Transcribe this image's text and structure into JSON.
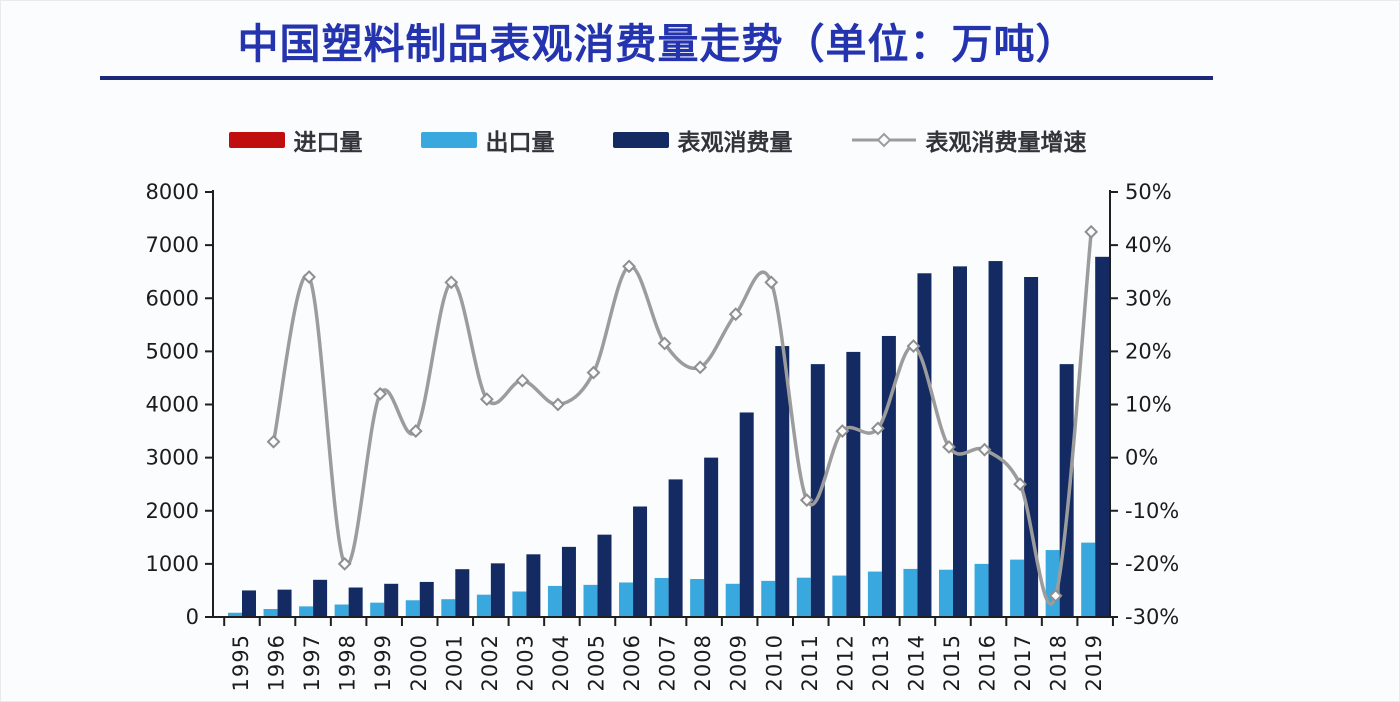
{
  "title": {
    "text": "中国塑料制品表观消费量走势（单位：万吨）"
  },
  "colors": {
    "title_blue": "#2433ae",
    "underline_navy": "#1c2878",
    "import_red": "#c00d0d",
    "export_blue": "#38a8df",
    "consumption_navy": "#132a63",
    "growth_gray": "#9c9c9c",
    "axis_black": "#1f1f1f",
    "legend_text": "#33343a",
    "background": "#fbfcfd"
  },
  "legend": {
    "items": [
      {
        "label": "进口量",
        "type": "bar",
        "color": "#c00d0d"
      },
      {
        "label": "出口量",
        "type": "bar",
        "color": "#38a8df"
      },
      {
        "label": "表观消费量",
        "type": "bar",
        "color": "#132a63"
      },
      {
        "label": "表观消费量增速",
        "type": "line",
        "color": "#9c9c9c"
      }
    ]
  },
  "chart_data": {
    "type": "bar",
    "subtype": "grouped bars with secondary-axis line (combo chart)",
    "title": "中国塑料制品表观消费量走势（单位：万吨）",
    "categories": [
      "1995",
      "1996",
      "1997",
      "1998",
      "1999",
      "2000",
      "2001",
      "2002",
      "2003",
      "2004",
      "2005",
      "2006",
      "2007",
      "2008",
      "2009",
      "2010",
      "2011",
      "2012",
      "2013",
      "2014",
      "2015",
      "2016",
      "2017",
      "2018",
      "2019"
    ],
    "series": [
      {
        "name": "进口量",
        "type": "bar",
        "axis": "left",
        "color": "#c00d0d",
        "values": null,
        "note": "appears in legend only; no visible red bars are rendered in the plot"
      },
      {
        "name": "出口量",
        "type": "bar",
        "axis": "left",
        "color": "#38a8df",
        "values": [
          80,
          150,
          200,
          235,
          270,
          315,
          335,
          420,
          480,
          585,
          605,
          650,
          735,
          715,
          625,
          680,
          740,
          780,
          855,
          905,
          890,
          1000,
          1080,
          1260,
          1400
        ]
      },
      {
        "name": "表观消费量",
        "type": "bar",
        "axis": "left",
        "color": "#132a63",
        "values": [
          500,
          515,
          700,
          555,
          625,
          660,
          900,
          1010,
          1180,
          1320,
          1550,
          2080,
          2590,
          3000,
          3850,
          5100,
          4760,
          4990,
          5290,
          6470,
          6600,
          6700,
          6400,
          4760,
          6780
        ]
      },
      {
        "name": "表观消费量增速",
        "type": "line",
        "axis": "right",
        "unit": "%",
        "color": "#9c9c9c",
        "values": [
          null,
          3,
          34,
          -20,
          12,
          5,
          33,
          11,
          14.5,
          10,
          16,
          36,
          21.5,
          17,
          27,
          33,
          -8,
          5,
          5.5,
          21,
          2,
          1.5,
          -5,
          -26,
          42.5
        ]
      }
    ],
    "left_axis": {
      "min": 0,
      "max": 8000,
      "step": 1000,
      "tick_labels": [
        "8000",
        "7000",
        "6000",
        "5000",
        "4000",
        "3000",
        "2000",
        "1000",
        "0"
      ],
      "tick_values": [
        8000,
        7000,
        6000,
        5000,
        4000,
        3000,
        2000,
        1000,
        0
      ]
    },
    "right_axis": {
      "min": -30,
      "max": 50,
      "step": 10,
      "tick_labels": [
        "50%",
        "40%",
        "30%",
        "20%",
        "10%",
        "0%",
        "-10%",
        "-20%",
        "-30%"
      ],
      "tick_values": [
        50,
        40,
        30,
        20,
        10,
        0,
        -10,
        -20,
        -30
      ]
    },
    "grid": "off",
    "legend_position": "top",
    "x_tick_label_rotation": -90
  }
}
